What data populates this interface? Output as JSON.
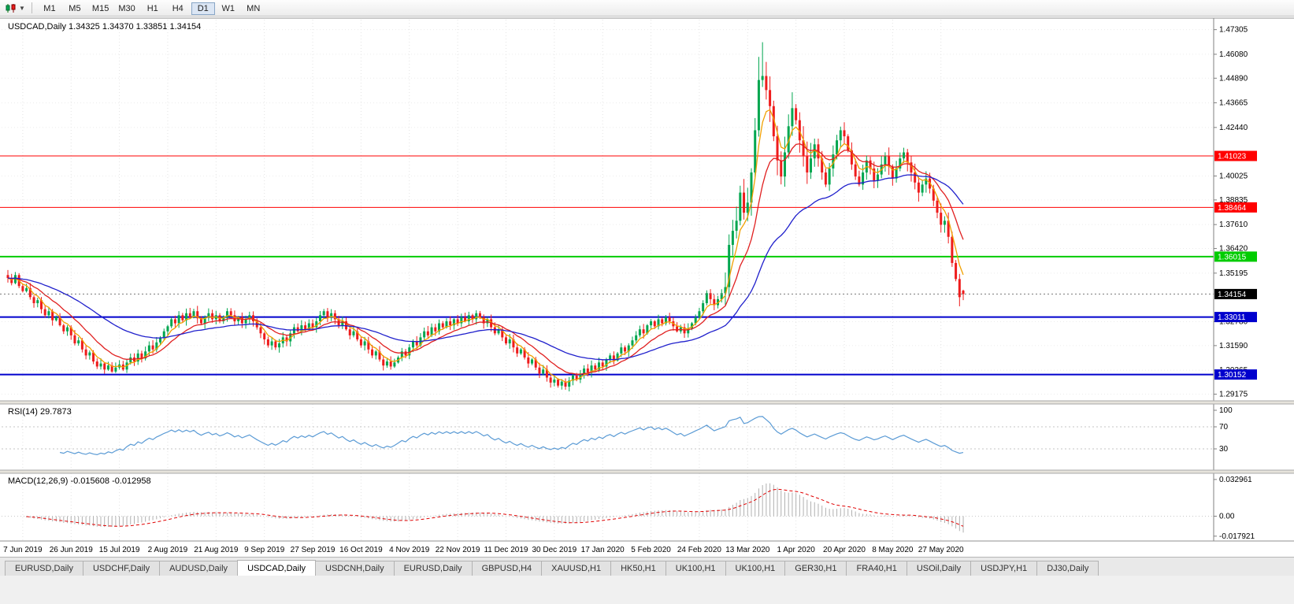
{
  "toolbar": {
    "icon": "candlestick-chart-icon",
    "timeframes": [
      "M1",
      "M5",
      "M15",
      "M30",
      "H1",
      "H4",
      "D1",
      "W1",
      "MN"
    ],
    "active_timeframe": "D1"
  },
  "chart": {
    "symbol": "USDCAD",
    "period": "Daily",
    "header_text": "USDCAD,Daily  1.34325 1.34370 1.33851 1.34154"
  },
  "indicators": {
    "rsi": {
      "header": "RSI(14) 29.7873",
      "period": 14,
      "current": 29.7873,
      "levels": [
        "100",
        "70",
        "30"
      ],
      "level_values": [
        100,
        70,
        30
      ],
      "color": "#5b9bd5"
    },
    "macd": {
      "header": "MACD(12,26,9) -0.015608 -0.012958",
      "fast": 12,
      "slow": 26,
      "signal": 9,
      "current_macd": -0.015608,
      "current_signal": -0.012958,
      "axis_labels": [
        "0.032961",
        "0.00",
        "-0.017921"
      ],
      "axis_values": [
        0.032961,
        0,
        -0.017921
      ],
      "hist_color": "#b0b0b0",
      "signal_color": "#e00000"
    }
  },
  "chart_data": {
    "type": "candlestick",
    "symbol": "USDCAD",
    "timeframe": "D1",
    "current_ohlc": {
      "open": 1.34325,
      "high": 1.3437,
      "low": 1.33851,
      "close": 1.34154
    },
    "closes": [
      1.3495,
      1.347,
      1.351,
      1.3455,
      1.343,
      1.3445,
      1.34,
      1.337,
      1.3385,
      1.334,
      1.331,
      1.333,
      1.3285,
      1.33,
      1.326,
      1.323,
      1.325,
      1.321,
      1.317,
      1.3185,
      1.314,
      1.311,
      1.3125,
      1.308,
      1.3055,
      1.307,
      1.304,
      1.306,
      1.303,
      1.305,
      1.3065,
      1.304,
      1.3075,
      1.31,
      1.308,
      1.312,
      1.3095,
      1.313,
      1.316,
      1.314,
      1.3175,
      1.32,
      1.323,
      1.3255,
      1.329,
      1.327,
      1.331,
      1.3285,
      1.332,
      1.33,
      1.333,
      1.3295,
      1.327,
      1.33,
      1.332,
      1.329,
      1.331,
      1.328,
      1.33,
      1.333,
      1.331,
      1.328,
      1.33,
      1.327,
      1.329,
      1.331,
      1.328,
      1.325,
      1.322,
      1.319,
      1.316,
      1.318,
      1.315,
      1.317,
      1.32,
      1.318,
      1.322,
      1.325,
      1.323,
      1.326,
      1.324,
      1.327,
      1.325,
      1.328,
      1.331,
      1.333,
      1.33,
      1.332,
      1.329,
      1.326,
      1.328,
      1.324,
      1.321,
      1.323,
      1.319,
      1.316,
      1.318,
      1.314,
      1.311,
      1.313,
      1.309,
      1.306,
      1.308,
      1.3055,
      1.3075,
      1.31,
      1.313,
      1.311,
      1.315,
      1.318,
      1.316,
      1.32,
      1.323,
      1.321,
      1.325,
      1.323,
      1.327,
      1.325,
      1.328,
      1.326,
      1.329,
      1.327,
      1.33,
      1.328,
      1.331,
      1.329,
      1.332,
      1.33,
      1.327,
      1.329,
      1.325,
      1.322,
      1.324,
      1.32,
      1.317,
      1.319,
      1.315,
      1.312,
      1.314,
      1.31,
      1.307,
      1.309,
      1.305,
      1.302,
      1.304,
      1.3,
      1.2975,
      1.299,
      1.296,
      1.298,
      1.2955,
      1.2985,
      1.301,
      1.299,
      1.302,
      1.3045,
      1.3025,
      1.306,
      1.304,
      1.3075,
      1.3055,
      1.309,
      1.311,
      1.3085,
      1.312,
      1.315,
      1.313,
      1.316,
      1.3185,
      1.321,
      1.324,
      1.322,
      1.326,
      1.328,
      1.3255,
      1.329,
      1.327,
      1.33,
      1.328,
      1.3255,
      1.323,
      1.325,
      1.322,
      1.3245,
      1.327,
      1.33,
      1.333,
      1.337,
      1.342,
      1.339,
      1.336,
      1.339,
      1.342,
      1.345,
      1.366,
      1.373,
      1.378,
      1.392,
      1.382,
      1.387,
      1.402,
      1.423,
      1.448,
      1.45,
      1.443,
      1.435,
      1.42,
      1.408,
      1.4,
      1.412,
      1.425,
      1.434,
      1.428,
      1.418,
      1.41,
      1.402,
      1.409,
      1.416,
      1.409,
      1.402,
      1.396,
      1.404,
      1.411,
      1.418,
      1.423,
      1.42,
      1.413,
      1.406,
      1.4,
      1.396,
      1.402,
      1.408,
      1.404,
      1.398,
      1.401,
      1.406,
      1.41,
      1.405,
      1.399,
      1.404,
      1.409,
      1.412,
      1.407,
      1.402,
      1.397,
      1.392,
      1.396,
      1.399,
      1.394,
      1.388,
      1.382,
      1.376,
      1.378,
      1.37,
      1.357,
      1.349,
      1.34,
      1.34154
    ],
    "wick_overrides": {
      "202": 1.4595,
      "203": 1.4668,
      "204": 1.457
    },
    "volatility_segments": [
      [
        0,
        192,
        0.0036
      ],
      [
        193,
        216,
        0.011
      ],
      [
        217,
        257,
        0.0062
      ]
    ],
    "date_labels": [
      "7 Jun 2019",
      "26 Jun 2019",
      "15 Jul 2019",
      "2 Aug 2019",
      "21 Aug 2019",
      "9 Sep 2019",
      "27 Sep 2019",
      "16 Oct 2019",
      "4 Nov 2019",
      "22 Nov 2019",
      "11 Dec 2019",
      "30 Dec 2019",
      "17 Jan 2020",
      "5 Feb 2020",
      "24 Feb 2020",
      "13 Mar 2020",
      "1 Apr 2020",
      "20 Apr 2020",
      "8 May 2020",
      "27 May 2020"
    ],
    "label_indices": [
      4,
      17,
      30,
      43,
      56,
      69,
      82,
      95,
      108,
      121,
      134,
      147,
      160,
      173,
      186,
      199,
      212,
      225,
      238,
      251
    ],
    "price_ticks": [
      1.47305,
      1.4608,
      1.4489,
      1.43665,
      1.4244,
      1.40025,
      1.38835,
      1.3761,
      1.3642,
      1.35195,
      1.3278,
      1.3159,
      1.30365,
      1.29175
    ],
    "y_range": [
      1.29,
      1.478
    ],
    "hlines": [
      {
        "value": 1.41023,
        "label": "1.41023",
        "color": "#ff0000",
        "width": 1
      },
      {
        "value": 1.38464,
        "label": "1.38464",
        "color": "#ff0000",
        "width": 1
      },
      {
        "value": 1.36015,
        "label": "1.36015",
        "color": "#00cc00",
        "width": 2
      },
      {
        "value": 1.33011,
        "label": "1.33011",
        "color": "#0000cd",
        "width": 2
      },
      {
        "value": 1.30152,
        "label": "1.30152",
        "color": "#0000cd",
        "width": 2
      }
    ],
    "current_price": {
      "label": "1.34154",
      "value": 1.34154,
      "color": "#000000"
    },
    "moving_averages": [
      {
        "period": 5,
        "color": "#f0a000",
        "name": "fast-ma"
      },
      {
        "period": 13,
        "color": "#e02020",
        "name": "mid-ma"
      },
      {
        "period": 40,
        "color": "#2020cc",
        "name": "slow-ma"
      }
    ],
    "up_color": "#00a64f",
    "down_color": "#ee1c1c"
  },
  "tabs": {
    "items": [
      "EURUSD,Daily",
      "USDCHF,Daily",
      "AUDUSD,Daily",
      "USDCAD,Daily",
      "USDCNH,Daily",
      "EURUSD,Daily",
      "GBPUSD,H4",
      "XAUUSD,H1",
      "HK50,H1",
      "UK100,H1",
      "UK100,H1",
      "GER30,H1",
      "FRA40,H1",
      "USOil,Daily",
      "USDJPY,H1",
      "DJ30,Daily"
    ],
    "active_index": 3
  }
}
